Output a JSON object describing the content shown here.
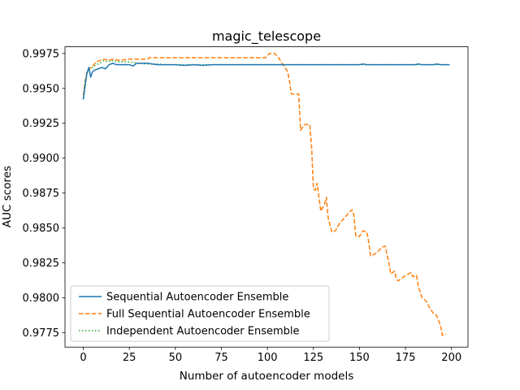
{
  "chart_data": {
    "type": "line",
    "title": "magic_telescope",
    "xlabel": "Number of autoencoder models",
    "ylabel": "AUC scores",
    "xlim": [
      -9.95,
      208.95
    ],
    "ylim": [
      0.97646,
      0.99798
    ],
    "x_ticks": [
      0,
      25,
      50,
      75,
      100,
      125,
      150,
      175,
      200
    ],
    "x_tick_labels": [
      "0",
      "25",
      "50",
      "75",
      "100",
      "125",
      "150",
      "175",
      "200"
    ],
    "y_ticks": [
      0.9775,
      0.98,
      0.9825,
      0.985,
      0.9875,
      0.99,
      0.9925,
      0.995,
      0.9975
    ],
    "y_tick_labels": [
      "0.9775",
      "0.9800",
      "0.9825",
      "0.9850",
      "0.9875",
      "0.9900",
      "0.9925",
      "0.9950",
      "0.9975"
    ],
    "grid": false,
    "legend_position": "lower-left",
    "series": [
      {
        "name": "Sequential Autoencoder Ensemble",
        "color": "#1f77b4",
        "style": "solid",
        "points": [
          [
            0,
            0.9942
          ],
          [
            1,
            0.9952
          ],
          [
            2,
            0.9961
          ],
          [
            3,
            0.9965
          ],
          [
            4,
            0.9958
          ],
          [
            5,
            0.9962
          ],
          [
            6,
            0.9963
          ],
          [
            8,
            0.9964
          ],
          [
            10,
            0.9965
          ],
          [
            12,
            0.9964
          ],
          [
            14,
            0.9967
          ],
          [
            16,
            0.9968
          ],
          [
            18,
            0.9967
          ],
          [
            25,
            0.9967
          ],
          [
            27,
            0.9966
          ],
          [
            29,
            0.9968
          ],
          [
            35,
            0.9968
          ],
          [
            40,
            0.9967
          ],
          [
            50,
            0.9967
          ],
          [
            55,
            0.99665
          ],
          [
            60,
            0.9967
          ],
          [
            65,
            0.99665
          ],
          [
            70,
            0.9967
          ],
          [
            100,
            0.9967
          ],
          [
            150,
            0.9967
          ],
          [
            152,
            0.99675
          ],
          [
            154,
            0.9967
          ],
          [
            180,
            0.9967
          ],
          [
            182,
            0.99675
          ],
          [
            184,
            0.9967
          ],
          [
            190,
            0.9967
          ],
          [
            192,
            0.99675
          ],
          [
            194,
            0.9967
          ],
          [
            199,
            0.9967
          ]
        ]
      },
      {
        "name": "Full Sequential Autoencoder Ensemble",
        "color": "#ff7f0e",
        "style": "dashed",
        "points": [
          [
            0,
            0.9945
          ],
          [
            1,
            0.9955
          ],
          [
            2,
            0.9962
          ],
          [
            3,
            0.9964
          ],
          [
            5,
            0.9966
          ],
          [
            7,
            0.9969
          ],
          [
            9,
            0.997
          ],
          [
            11,
            0.9971
          ],
          [
            14,
            0.997
          ],
          [
            16,
            0.9971
          ],
          [
            20,
            0.997
          ],
          [
            25,
            0.9971
          ],
          [
            35,
            0.9971
          ],
          [
            36,
            0.9972
          ],
          [
            99,
            0.9972
          ],
          [
            101,
            0.9975
          ],
          [
            104,
            0.9975
          ],
          [
            106,
            0.9972
          ],
          [
            109,
            0.9966
          ],
          [
            111,
            0.9962
          ],
          [
            112,
            0.9955
          ],
          [
            113,
            0.9946
          ],
          [
            117,
            0.9946
          ],
          [
            118,
            0.992
          ],
          [
            120,
            0.9924
          ],
          [
            123,
            0.9924
          ],
          [
            124,
            0.9908
          ],
          [
            125,
            0.9878
          ],
          [
            126,
            0.9877
          ],
          [
            127,
            0.9882
          ],
          [
            129,
            0.9862
          ],
          [
            131,
            0.9867
          ],
          [
            132,
            0.9872
          ],
          [
            133,
            0.9857
          ],
          [
            135,
            0.9847
          ],
          [
            137,
            0.9848
          ],
          [
            139,
            0.9853
          ],
          [
            141,
            0.9856
          ],
          [
            143,
            0.9859
          ],
          [
            145,
            0.9862
          ],
          [
            146,
            0.9863
          ],
          [
            147,
            0.9859
          ],
          [
            148,
            0.9844
          ],
          [
            150,
            0.9844
          ],
          [
            152,
            0.9848
          ],
          [
            154,
            0.9847
          ],
          [
            155,
            0.984
          ],
          [
            156,
            0.983
          ],
          [
            158,
            0.9831
          ],
          [
            160,
            0.9833
          ],
          [
            162,
            0.9836
          ],
          [
            164,
            0.9837
          ],
          [
            165,
            0.9831
          ],
          [
            166,
            0.9825
          ],
          [
            167,
            0.9817
          ],
          [
            169,
            0.9819
          ],
          [
            170,
            0.9814
          ],
          [
            171,
            0.9812
          ],
          [
            174,
            0.9815
          ],
          [
            178,
            0.9818
          ],
          [
            179,
            0.9815
          ],
          [
            181,
            0.9816
          ],
          [
            182,
            0.9808
          ],
          [
            184,
            0.98
          ],
          [
            186,
            0.9798
          ],
          [
            188,
            0.9793
          ],
          [
            190,
            0.9789
          ],
          [
            192,
            0.9787
          ],
          [
            194,
            0.978
          ],
          [
            195,
            0.9773
          ],
          [
            197,
            0.9774
          ]
        ]
      },
      {
        "name": "Independent Autoencoder Ensemble",
        "color": "#2ca02c",
        "style": "dotted",
        "points": [
          [
            0,
            0.9943
          ],
          [
            1,
            0.9955
          ],
          [
            2,
            0.9961
          ],
          [
            3,
            0.9963
          ],
          [
            5,
            0.9965
          ],
          [
            7,
            0.9967
          ],
          [
            9,
            0.9968
          ],
          [
            11,
            0.997
          ],
          [
            13,
            0.9969
          ],
          [
            15,
            0.997
          ],
          [
            20,
            0.9969
          ],
          [
            25,
            0.9969
          ],
          [
            30,
            0.9968
          ],
          [
            35,
            0.99675
          ],
          [
            40,
            0.99675
          ],
          [
            45,
            0.9967
          ],
          [
            199,
            0.9967
          ]
        ]
      }
    ]
  }
}
